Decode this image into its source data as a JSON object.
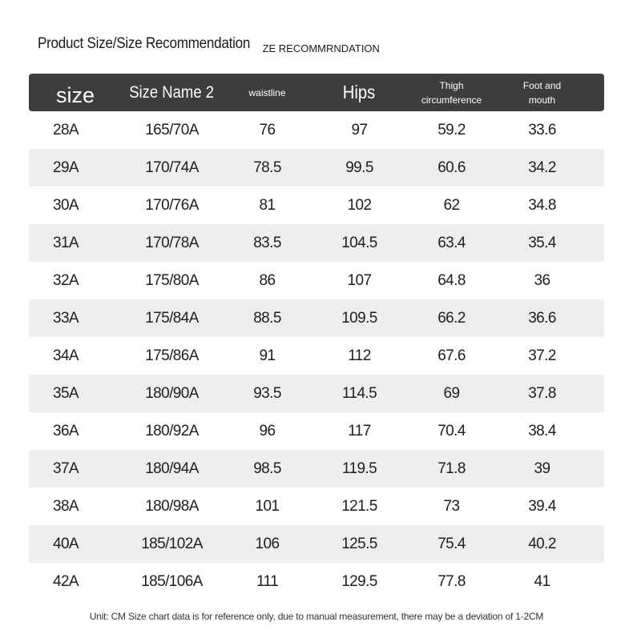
{
  "title": {
    "main": "Product Size/Size Recommendation",
    "sub": "ZE RECOMMRNDATION"
  },
  "table": {
    "headers": {
      "size": "size",
      "name": "Size Name 2",
      "waist": "waistline",
      "hips": "Hips",
      "thigh_line1": "Thigh",
      "thigh_line2": "circumference",
      "foot_line1": "Foot and",
      "foot_line2": "mouth"
    },
    "rows": [
      [
        "28A",
        "165/70A",
        "76",
        "97",
        "59.2",
        "33.6"
      ],
      [
        "29A",
        "170/74A",
        "78.5",
        "99.5",
        "60.6",
        "34.2"
      ],
      [
        "30A",
        "170/76A",
        "81",
        "102",
        "62",
        "34.8"
      ],
      [
        "31A",
        "170/78A",
        "83.5",
        "104.5",
        "63.4",
        "35.4"
      ],
      [
        "32A",
        "175/80A",
        "86",
        "107",
        "64.8",
        "36"
      ],
      [
        "33A",
        "175/84A",
        "88.5",
        "109.5",
        "66.2",
        "36.6"
      ],
      [
        "34A",
        "175/86A",
        "91",
        "112",
        "67.6",
        "37.2"
      ],
      [
        "35A",
        "180/90A",
        "93.5",
        "114.5",
        "69",
        "37.8"
      ],
      [
        "36A",
        "180/92A",
        "96",
        "117",
        "70.4",
        "38.4"
      ],
      [
        "37A",
        "180/94A",
        "98.5",
        "119.5",
        "71.8",
        "39"
      ],
      [
        "38A",
        "180/98A",
        "101",
        "121.5",
        "73",
        "39.4"
      ],
      [
        "40A",
        "185/102A",
        "106",
        "125.5",
        "75.4",
        "40.2"
      ],
      [
        "42A",
        "185/106A",
        "111",
        "129.5",
        "77.8",
        "41"
      ]
    ]
  },
  "footer": "Unit: CM Size chart data is for reference only, due to manual measurement, there may be a deviation of 1-2CM",
  "colors": {
    "header_bg": "#3d3d3d",
    "row_alt_bg": "#ededed"
  }
}
